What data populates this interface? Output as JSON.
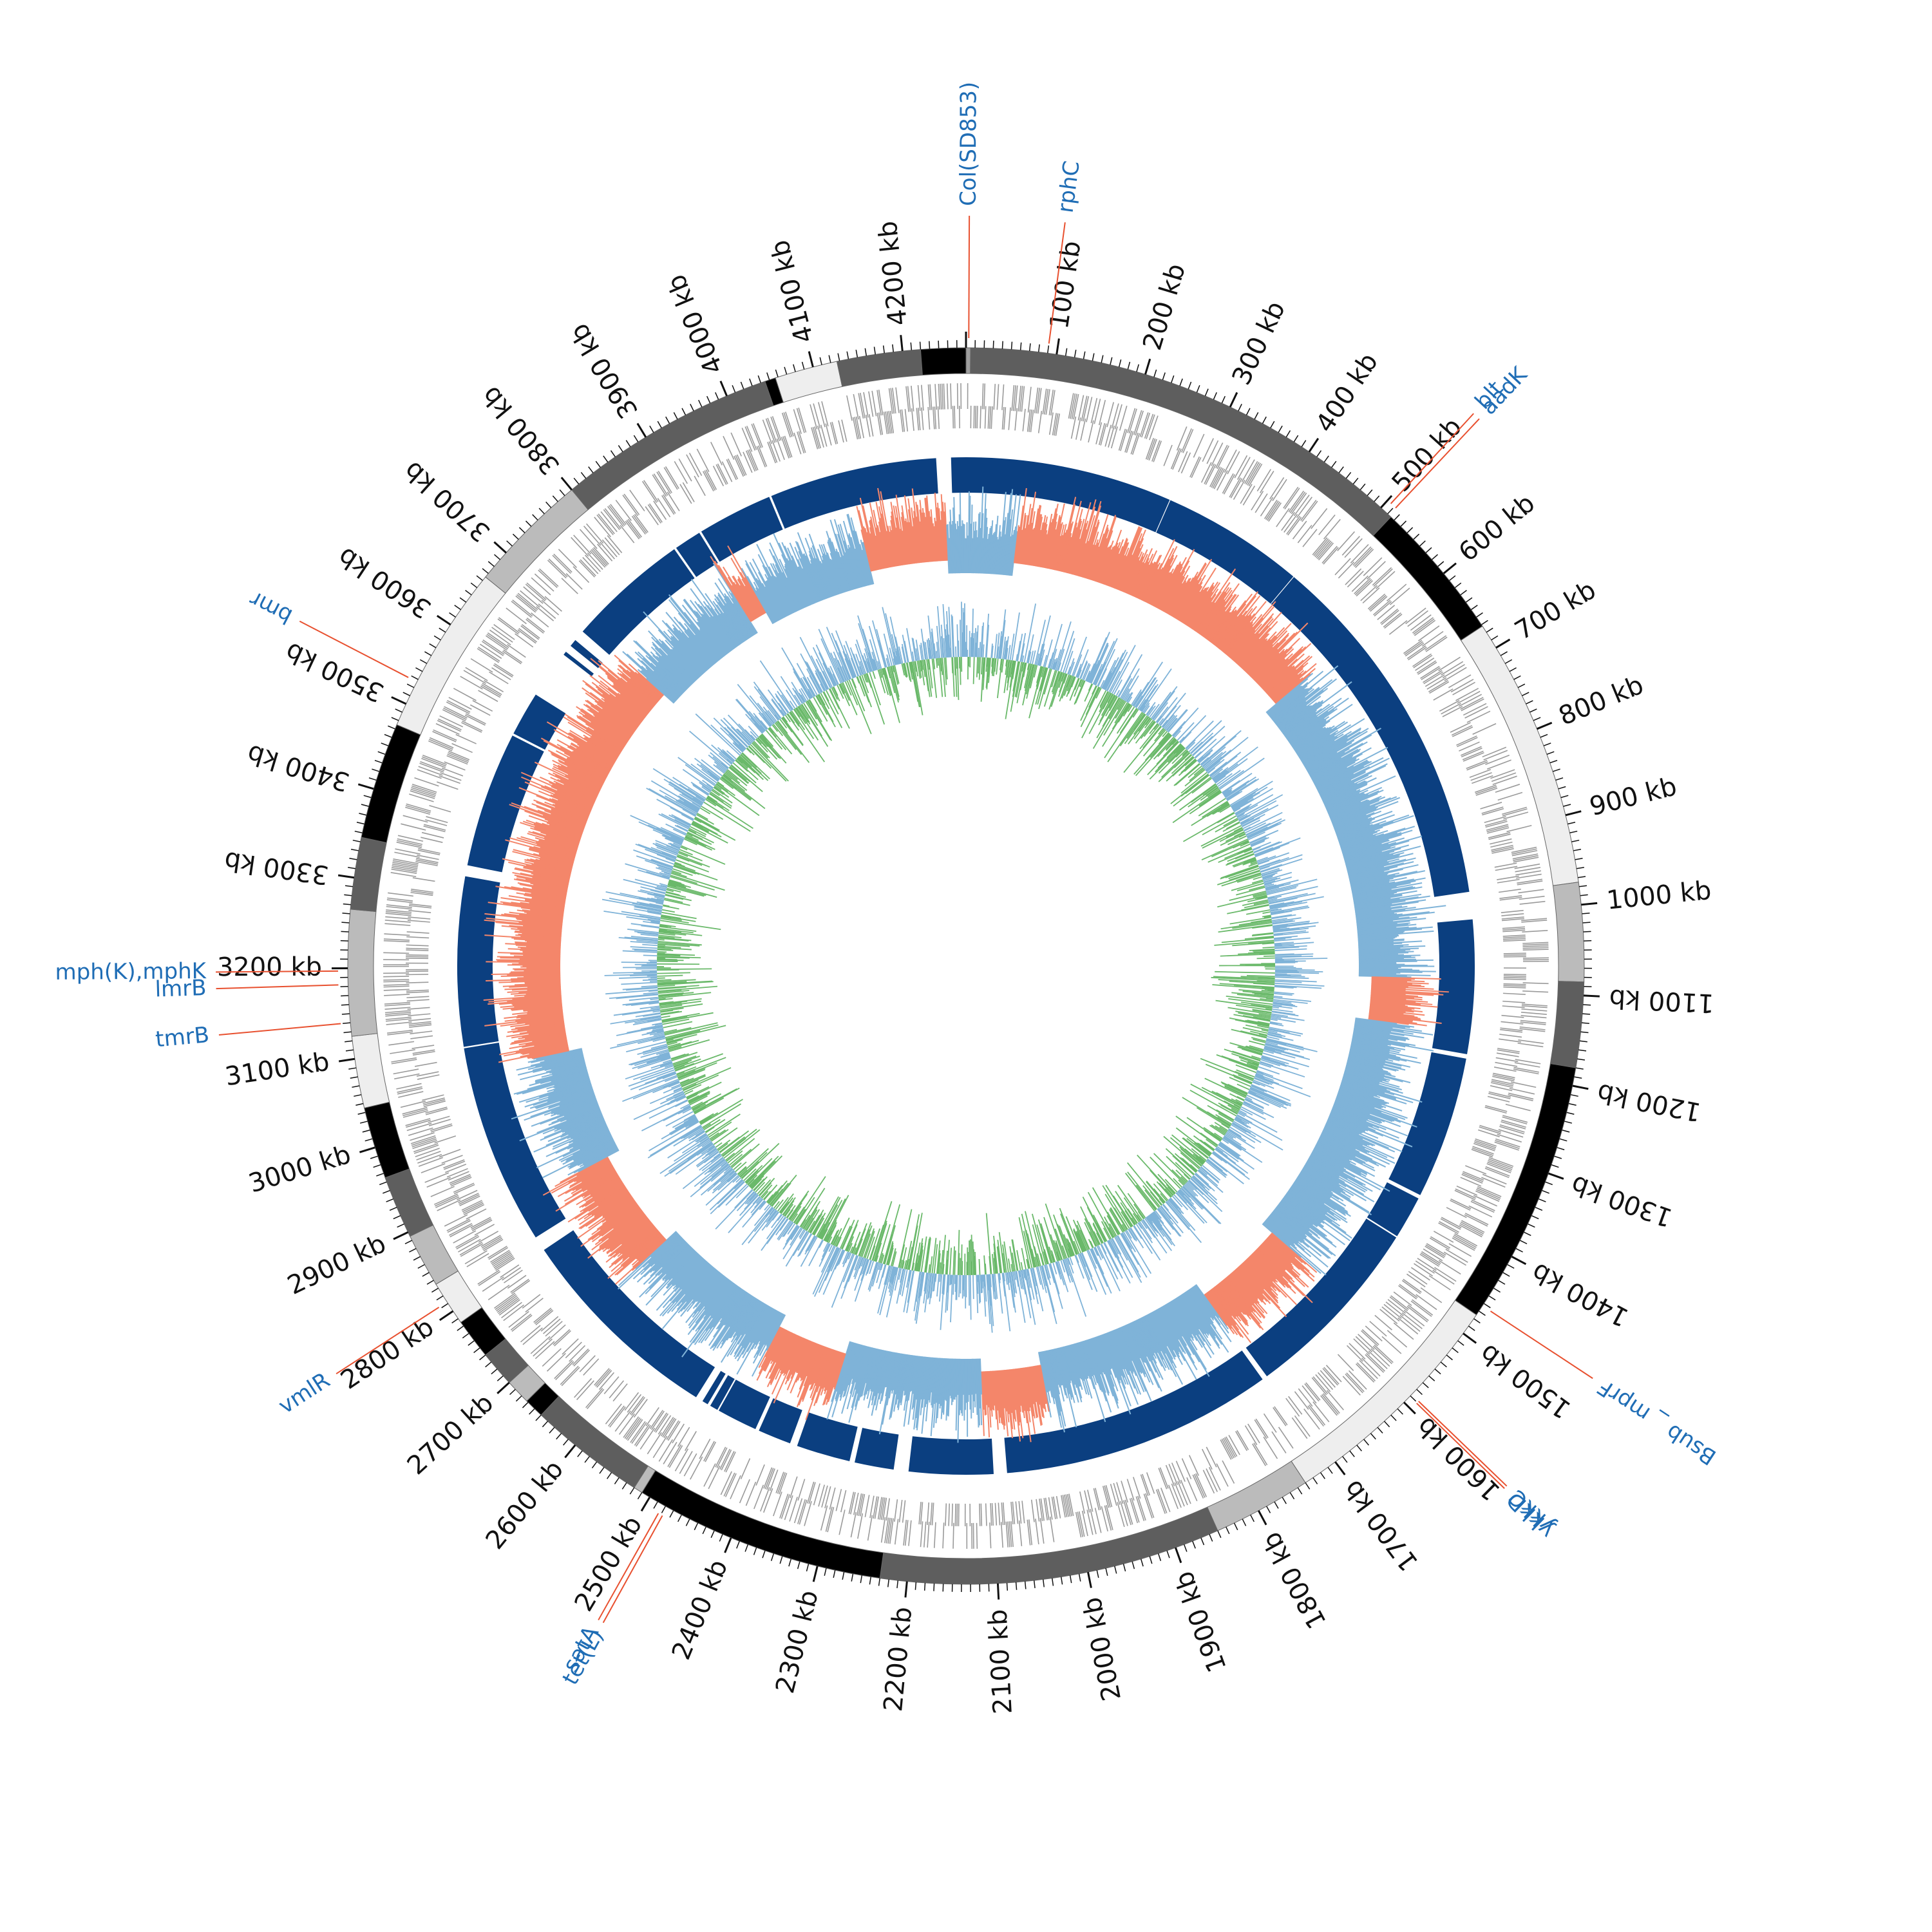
{
  "genome": {
    "length_kb": 4270,
    "tick_step_kb": 100,
    "tick_unit": "kb",
    "minor_tick_step_kb": 10
  },
  "contigs": [
    {
      "start": 0,
      "end": 5,
      "shade": "#9e9e9e"
    },
    {
      "start": 5,
      "end": 515,
      "shade": "#5e5e5e"
    },
    {
      "start": 515,
      "end": 672,
      "shade": "#000000"
    },
    {
      "start": 672,
      "end": 975,
      "shade": "#eeeeee"
    },
    {
      "start": 975,
      "end": 1085,
      "shade": "#bbbbbb"
    },
    {
      "start": 1085,
      "end": 1180,
      "shade": "#5e5e5e"
    },
    {
      "start": 1180,
      "end": 1475,
      "shade": "#000000"
    },
    {
      "start": 1475,
      "end": 1740,
      "shade": "#eeeeee"
    },
    {
      "start": 1740,
      "end": 1850,
      "shade": "#bbbbbb"
    },
    {
      "start": 1850,
      "end": 2230,
      "shade": "#5e5e5e"
    },
    {
      "start": 2230,
      "end": 2510,
      "shade": "#000000"
    },
    {
      "start": 2510,
      "end": 2520,
      "shade": "#bbbbbb"
    },
    {
      "start": 2520,
      "end": 2650,
      "shade": "#5e5e5e"
    },
    {
      "start": 2650,
      "end": 2672,
      "shade": "#000000"
    },
    {
      "start": 2672,
      "end": 2700,
      "shade": "#bbbbbb"
    },
    {
      "start": 2700,
      "end": 2740,
      "shade": "#5e5e5e"
    },
    {
      "start": 2740,
      "end": 2785,
      "shade": "#000000"
    },
    {
      "start": 2785,
      "end": 2835,
      "shade": "#eeeeee"
    },
    {
      "start": 2835,
      "end": 2895,
      "shade": "#bbbbbb"
    },
    {
      "start": 2895,
      "end": 2965,
      "shade": "#5e5e5e"
    },
    {
      "start": 2965,
      "end": 3045,
      "shade": "#000000"
    },
    {
      "start": 3045,
      "end": 3125,
      "shade": "#eeeeee"
    },
    {
      "start": 3125,
      "end": 3265,
      "shade": "#bbbbbb"
    },
    {
      "start": 3265,
      "end": 3345,
      "shade": "#5e5e5e"
    },
    {
      "start": 3345,
      "end": 3475,
      "shade": "#000000"
    },
    {
      "start": 3475,
      "end": 3665,
      "shade": "#eeeeee"
    },
    {
      "start": 3665,
      "end": 3800,
      "shade": "#bbbbbb"
    },
    {
      "start": 3800,
      "end": 4045,
      "shade": "#5e5e5e"
    },
    {
      "start": 4045,
      "end": 4057,
      "shade": "#000000"
    },
    {
      "start": 4057,
      "end": 4127,
      "shade": "#eeeeee"
    },
    {
      "start": 4127,
      "end": 4220,
      "shade": "#5e5e5e"
    },
    {
      "start": 4220,
      "end": 4270,
      "shade": "#000000"
    }
  ],
  "blocks": [
    {
      "start": 0,
      "end": 280
    },
    {
      "start": 281,
      "end": 475
    },
    {
      "start": 476,
      "end": 968
    },
    {
      "start": 1005,
      "end": 1186
    },
    {
      "start": 1192,
      "end": 1385
    },
    {
      "start": 1390,
      "end": 1448
    },
    {
      "start": 1450,
      "end": 1705
    },
    {
      "start": 1712,
      "end": 2080
    },
    {
      "start": 2098,
      "end": 2212
    },
    {
      "start": 2232,
      "end": 2285
    },
    {
      "start": 2292,
      "end": 2365
    },
    {
      "start": 2375,
      "end": 2420
    },
    {
      "start": 2425,
      "end": 2480
    },
    {
      "start": 2482,
      "end": 2493
    },
    {
      "start": 2497,
      "end": 2505
    },
    {
      "start": 2515,
      "end": 2800
    },
    {
      "start": 2820,
      "end": 3092
    },
    {
      "start": 3094,
      "end": 3323
    },
    {
      "start": 3338,
      "end": 3522
    },
    {
      "start": 3525,
      "end": 3585
    },
    {
      "start": 3650,
      "end": 3655
    },
    {
      "start": 3665,
      "end": 3675
    },
    {
      "start": 3690,
      "end": 3855
    },
    {
      "start": 3858,
      "end": 3895
    },
    {
      "start": 3898,
      "end": 4000
    },
    {
      "start": 4003,
      "end": 4230
    },
    {
      "start": 4250,
      "end": 4270
    }
  ],
  "skew_regions": [
    {
      "start": 0,
      "end": 80,
      "color": "#7fb3d8"
    },
    {
      "start": 80,
      "end": 590,
      "color": "#f4866a"
    },
    {
      "start": 590,
      "end": 1085,
      "color": "#7fb3d8"
    },
    {
      "start": 1085,
      "end": 1158,
      "color": "#f4866a"
    },
    {
      "start": 1158,
      "end": 1555,
      "color": "#7fb3d8"
    },
    {
      "start": 1555,
      "end": 1710,
      "color": "#f4866a"
    },
    {
      "start": 1710,
      "end": 2010,
      "color": "#7fb3d8"
    },
    {
      "start": 2010,
      "end": 2110,
      "color": "#f4866a"
    },
    {
      "start": 2110,
      "end": 2340,
      "color": "#7fb3d8"
    },
    {
      "start": 2340,
      "end": 2460,
      "color": "#f4866a"
    },
    {
      "start": 2460,
      "end": 2700,
      "color": "#7fb3d8"
    },
    {
      "start": 2700,
      "end": 2870,
      "color": "#f4866a"
    },
    {
      "start": 2870,
      "end": 3060,
      "color": "#7fb3d8"
    },
    {
      "start": 3060,
      "end": 3700,
      "color": "#f4866a"
    },
    {
      "start": 3700,
      "end": 3890,
      "color": "#7fb3d8"
    },
    {
      "start": 3890,
      "end": 3920,
      "color": "#f4866a"
    },
    {
      "start": 3920,
      "end": 4110,
      "color": "#7fb3d8"
    },
    {
      "start": 4110,
      "end": 4240,
      "color": "#f4866a"
    },
    {
      "start": 4240,
      "end": 4270,
      "color": "#7fb3d8"
    }
  ],
  "genes": [
    {
      "name": "Col(SD853)",
      "position": 3
    },
    {
      "name": "rphC",
      "position": 90
    },
    {
      "name": "blt",
      "position": 505
    },
    {
      "name": "aadK",
      "position": 512
    },
    {
      "name": "Bsub _ mprF",
      "position": 1463
    },
    {
      "name": "ykkC",
      "position": 1588
    },
    {
      "name": "ykkD",
      "position": 1591
    },
    {
      "name": "tet(L)",
      "position": 2478
    },
    {
      "name": "satA",
      "position": 2483
    },
    {
      "name": "vmlR",
      "position": 2812
    },
    {
      "name": "tmrB",
      "position": 3140
    },
    {
      "name": "lmrB",
      "position": 3182
    },
    {
      "name": "mph(K),mphK",
      "position": 3197
    },
    {
      "name": "bmr",
      "position": 3527
    }
  ],
  "colors": {
    "gene_label": "#1f6db5",
    "leader_line": "#e8502f",
    "block": "#0b3f80",
    "gc_content_inner": "#6ab96a",
    "gc_content_outer": "#7fb3d8",
    "cds_track": "#9a9a9a",
    "tick": "#111111"
  },
  "icons": []
}
